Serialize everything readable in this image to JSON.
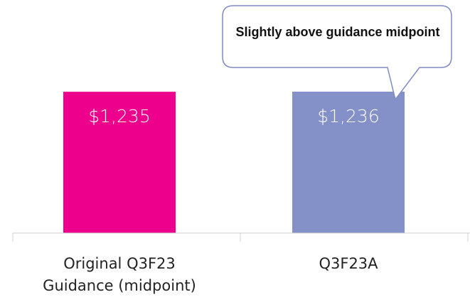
{
  "chart_data": {
    "type": "bar",
    "categories": [
      "Original Q3F23 Guidance (midpoint)",
      "Q3F23A"
    ],
    "values": [
      1235,
      1236
    ],
    "value_labels": [
      "$1,235",
      "$1,236"
    ],
    "colors": [
      "#ec008c",
      "#8490c8"
    ],
    "annotation": "Slightly above guidance midpoint"
  }
}
